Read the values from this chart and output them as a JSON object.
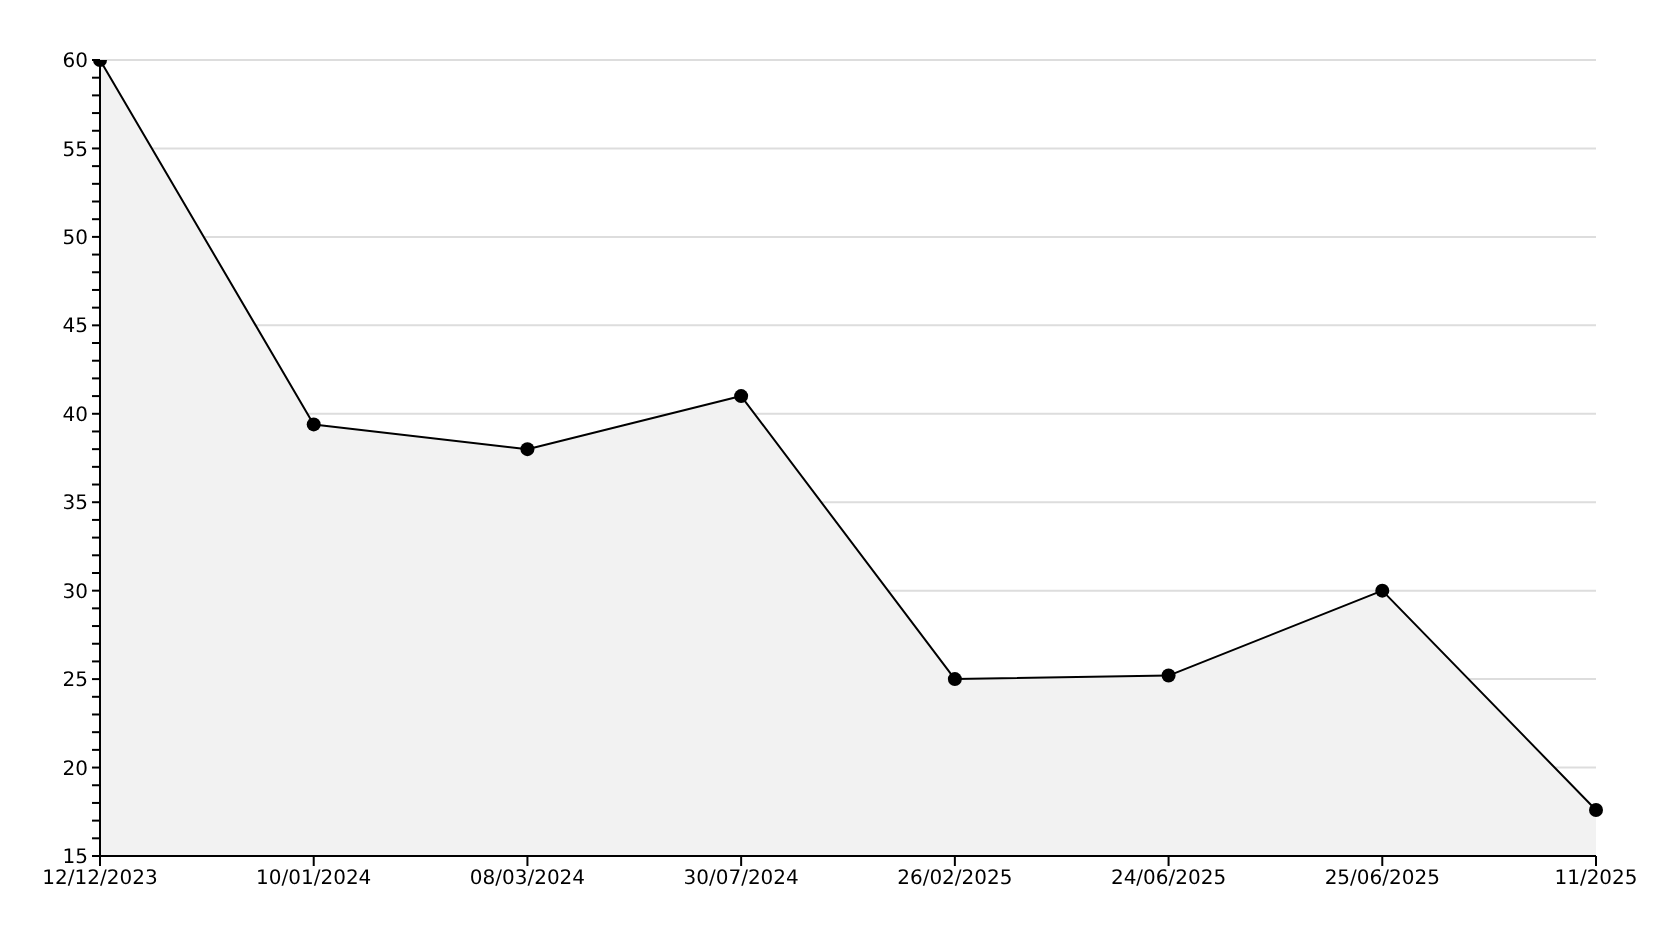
{
  "chart_data": {
    "type": "area",
    "categories": [
      "12/12/2023",
      "10/01/2024",
      "08/03/2024",
      "30/07/2024",
      "26/02/2025",
      "24/06/2025",
      "25/06/2025",
      "11/2025"
    ],
    "series": [
      {
        "color": "#000000",
        "values": [
          60,
          39.4,
          38,
          41,
          25,
          25.2,
          30,
          17.6
        ]
      }
    ],
    "ylim": [
      15,
      60
    ],
    "yticks": [
      15,
      {
        "value": 16,
        "label": null
      },
      {
        "value": 17,
        "label": null
      },
      {
        "value": 18,
        "label": null
      },
      {
        "value": 19,
        "label": null
      },
      20,
      {
        "value": 21,
        "label": null
      },
      {
        "value": 22,
        "label": null
      },
      {
        "value": 23,
        "label": null
      },
      {
        "value": 24,
        "label": null
      },
      25,
      {
        "value": 26,
        "label": null
      },
      {
        "value": 27,
        "label": null
      },
      {
        "value": 28,
        "label": null
      },
      {
        "value": 29,
        "label": null
      },
      30,
      {
        "value": 31,
        "label": null
      },
      {
        "value": 32,
        "label": null
      },
      {
        "value": 33,
        "label": null
      },
      {
        "value": 34,
        "label": null
      },
      35,
      {
        "value": 36,
        "label": null
      },
      {
        "value": 37,
        "label": null
      },
      {
        "value": 38,
        "label": null
      },
      {
        "value": 39,
        "label": null
      },
      40,
      {
        "value": 41,
        "label": null
      },
      {
        "value": 42,
        "label": null
      },
      {
        "value": 43,
        "label": null
      },
      {
        "value": 44,
        "label": null
      },
      45,
      {
        "value": 46,
        "label": null
      },
      {
        "value": 47,
        "label": null
      },
      {
        "value": 48,
        "label": null
      },
      {
        "value": 49,
        "label": null
      },
      50,
      {
        "value": 51,
        "label": null
      },
      {
        "value": 52,
        "label": null
      },
      {
        "value": 53,
        "label": null
      },
      {
        "value": 54,
        "label": null
      },
      55,
      {
        "value": 56,
        "label": null
      },
      {
        "value": 57,
        "label": null
      },
      {
        "value": 58,
        "label": null
      },
      {
        "value": 59,
        "label": null
      },
      60
    ],
    "grid": "y",
    "marker": "circle",
    "line_style": "solid"
  }
}
